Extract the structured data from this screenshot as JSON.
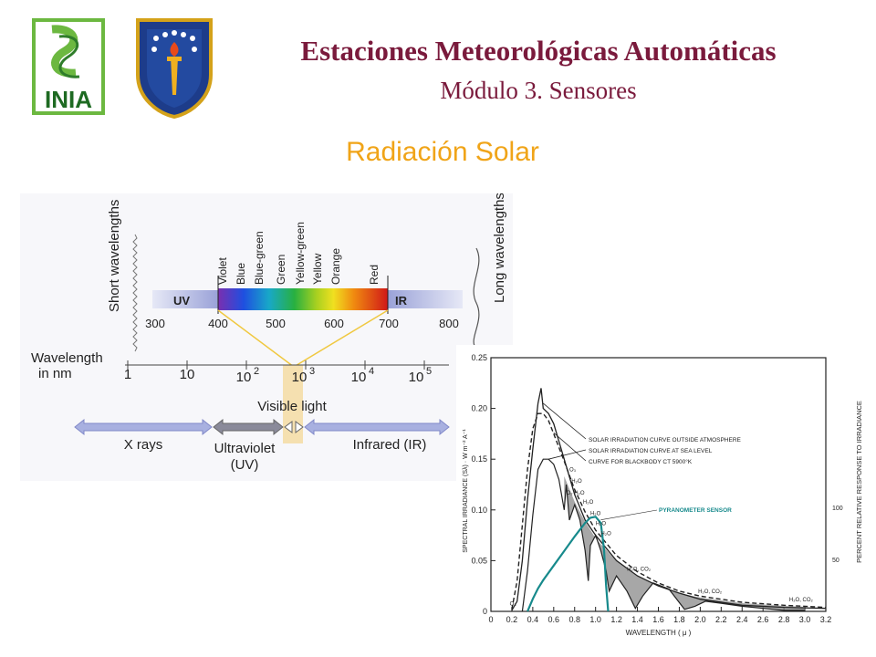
{
  "header": {
    "title": "Estaciones Meteorológicas Automáticas",
    "subtitle": "Módulo 3. Sensores",
    "logo_text": "INIA"
  },
  "section_title": "Radiación Solar",
  "spectrum": {
    "short_label": "Short wavelengths",
    "long_label": "Long wavelengths",
    "uv_label": "UV",
    "ir_label": "IR",
    "color_names": [
      "Violet",
      "Blue",
      "Blue-green",
      "Green",
      "Yellow-green",
      "Yellow",
      "Orange",
      "Red"
    ],
    "nm_ticks": [
      "300",
      "400",
      "500",
      "600",
      "700",
      "800"
    ],
    "wavelength_label_1": "Wavelength",
    "wavelength_label_2": "in nm",
    "log_ticks": [
      "1",
      "10",
      "10",
      "10",
      "10",
      "10"
    ],
    "log_exp": [
      "",
      "",
      "2",
      "3",
      "4",
      "5"
    ],
    "visible_label": "Visible light",
    "xray_label": "X rays",
    "uv_band_1": "Ultraviolet",
    "uv_band_2": "(UV)",
    "ir_band": "Infrared (IR)"
  },
  "chart_data": {
    "type": "line",
    "xlabel": "WAVELENGTH   ( μ )",
    "ylabel": "SPECTRAL IRRADIANCE (Sλ) · W m⁻² A⁻¹",
    "y2label": "PERCENT RELATIVE RESPONSE TO IRRADIANCE",
    "xlim": [
      0,
      3.2
    ],
    "ylim": [
      0,
      0.25
    ],
    "xticks": [
      "0",
      "0.2",
      "0.4",
      "0.6",
      "0.8",
      "1.0",
      "1.2",
      "1.4",
      "1.6",
      "1.8",
      "2.0",
      "2.2",
      "2.4",
      "2.6",
      "2.8",
      "3.0",
      "3.2"
    ],
    "yticks": [
      "0",
      "0.05",
      "0.10",
      "0.15",
      "0.20",
      "0.25"
    ],
    "y2ticks": [
      "50",
      "100"
    ],
    "legend": [
      "SOLAR IRRADIATION CURVE OUTSIDE ATMOSPHERE",
      "SOLAR IRRADIATION CURVE AT SEA LEVEL",
      "CURVE FOR BLACKBODY CT 5900°K"
    ],
    "sensor_label": "PYRANOMETER SENSOR",
    "sensor_color": "#178a8c",
    "absorption_labels": [
      "O₃",
      "O₃",
      "H₂O",
      "O₂ H₂O",
      "H₂O",
      "H₂O",
      "H₂O",
      "H₂O",
      "H₂O, CO₂",
      "H₂O, CO₂",
      "H₂O, CO₂"
    ],
    "series": [
      {
        "name": "SOLAR IRRADIATION CURVE OUTSIDE ATMOSPHERE",
        "x": [
          0.2,
          0.25,
          0.3,
          0.35,
          0.4,
          0.45,
          0.48,
          0.5,
          0.55,
          0.6,
          0.7,
          0.8,
          0.9,
          1.0,
          1.2,
          1.4,
          1.6,
          1.8,
          2.0,
          2.4,
          2.8,
          3.2
        ],
        "values": [
          0.001,
          0.01,
          0.05,
          0.11,
          0.16,
          0.205,
          0.22,
          0.2,
          0.195,
          0.185,
          0.15,
          0.115,
          0.09,
          0.075,
          0.05,
          0.035,
          0.025,
          0.018,
          0.012,
          0.006,
          0.004,
          0.003
        ]
      },
      {
        "name": "SOLAR IRRADIATION CURVE AT SEA LEVEL",
        "x": [
          0.3,
          0.35,
          0.4,
          0.45,
          0.5,
          0.55,
          0.6,
          0.65,
          0.7,
          0.72,
          0.75,
          0.8,
          0.85,
          0.9,
          0.93,
          0.95,
          1.0,
          1.05,
          1.1,
          1.13,
          1.2,
          1.3,
          1.38,
          1.45,
          1.55,
          1.7,
          1.85,
          1.95,
          2.05,
          2.2,
          2.4,
          2.6,
          2.8,
          3.0
        ],
        "values": [
          0.0,
          0.04,
          0.095,
          0.14,
          0.15,
          0.15,
          0.145,
          0.13,
          0.1,
          0.125,
          0.09,
          0.105,
          0.09,
          0.06,
          0.03,
          0.065,
          0.075,
          0.06,
          0.04,
          0.02,
          0.035,
          0.02,
          0.003,
          0.015,
          0.028,
          0.022,
          0.002,
          0.005,
          0.01,
          0.008,
          0.005,
          0.003,
          0.001,
          0.001
        ]
      },
      {
        "name": "CURVE FOR BLACKBODY CT 5900°K",
        "x": [
          0.2,
          0.25,
          0.3,
          0.35,
          0.4,
          0.45,
          0.5,
          0.55,
          0.6,
          0.7,
          0.8,
          0.9,
          1.0,
          1.2,
          1.4,
          1.6,
          1.8,
          2.0,
          2.4,
          2.8,
          3.2
        ],
        "values": [
          0.002,
          0.03,
          0.085,
          0.14,
          0.18,
          0.195,
          0.195,
          0.188,
          0.175,
          0.148,
          0.12,
          0.098,
          0.08,
          0.055,
          0.039,
          0.028,
          0.02,
          0.015,
          0.009,
          0.006,
          0.004
        ]
      },
      {
        "name": "PYRANOMETER SENSOR",
        "x": [
          0.35,
          0.4,
          0.45,
          0.5,
          0.6,
          0.7,
          0.8,
          0.9,
          0.95,
          1.0,
          1.05,
          1.08,
          1.1,
          1.12
        ],
        "values": [
          0,
          12,
          22,
          30,
          44,
          58,
          72,
          85,
          90,
          91,
          85,
          60,
          25,
          0
        ]
      }
    ]
  }
}
